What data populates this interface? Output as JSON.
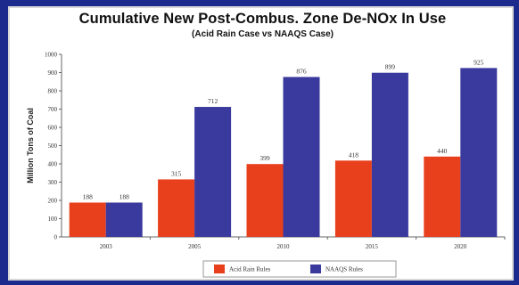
{
  "chart_data": {
    "type": "bar",
    "title": "Cumulative New Post-Combus. Zone De-NOx In Use",
    "subtitle": "(Acid Rain Case vs NAAQS Case)",
    "xlabel": "",
    "ylabel": "Million Tons of Coal",
    "ylim": [
      0,
      1000
    ],
    "yticks": [
      0,
      100,
      200,
      300,
      400,
      500,
      600,
      700,
      800,
      900,
      1000
    ],
    "categories": [
      "2003",
      "2005",
      "2010",
      "2015",
      "2020"
    ],
    "series": [
      {
        "name": "Acid Rain Rules",
        "color": "#e8401c",
        "values": [
          188,
          315,
          399,
          418,
          440
        ]
      },
      {
        "name": "NAAQS Rules",
        "color": "#3a3a9e",
        "values": [
          188,
          712,
          876,
          899,
          925
        ]
      }
    ],
    "value_labels": {
      "Acid Rain Rules": [
        "188",
        "315",
        "399",
        "418",
        "440"
      ],
      "NAAQS Rules": [
        "188",
        "712",
        "876",
        "899",
        "925"
      ]
    },
    "grid": false,
    "legend": "bottom"
  }
}
